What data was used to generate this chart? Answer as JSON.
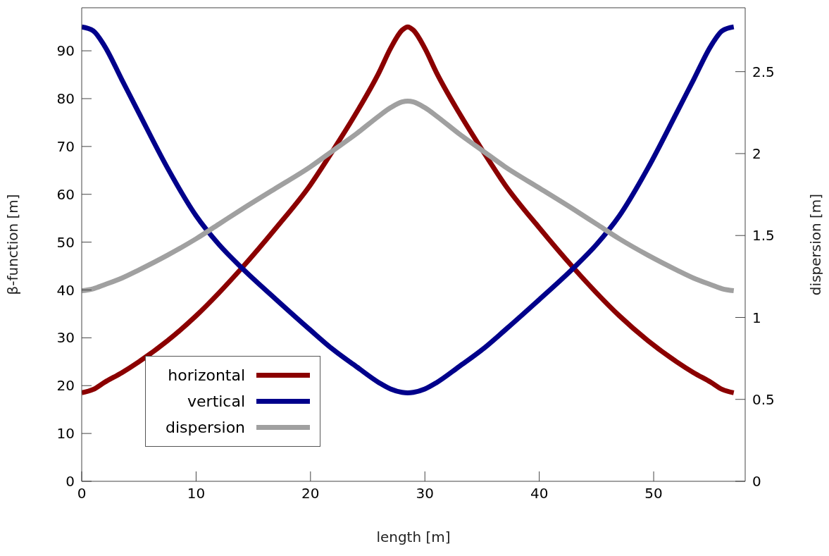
{
  "chart_data": {
    "type": "line",
    "xlabel": "length [m]",
    "ylabel": "β-function [m]",
    "y2label": "dispersion [m]",
    "x": [
      0,
      1,
      2,
      3.5,
      5,
      7.5,
      10,
      12,
      14,
      17,
      20,
      22,
      24,
      26,
      27,
      28,
      28.5,
      29,
      30,
      31,
      33,
      35,
      37,
      40,
      43,
      45,
      47,
      49.5,
      52,
      53.5,
      55,
      56,
      57
    ],
    "series": [
      {
        "name": "horizontal",
        "color": "#8b0000",
        "values": [
          18.5,
          19.2,
          20.7,
          22.7,
          25,
          29.4,
          34.6,
          39.4,
          44.6,
          53,
          62,
          69.3,
          77,
          85.5,
          90.5,
          94.3,
          95,
          94.3,
          90.5,
          85.5,
          77,
          69.3,
          62,
          53,
          44.6,
          39.4,
          34.6,
          29.4,
          25,
          22.7,
          20.7,
          19.2,
          18.5
        ]
      },
      {
        "name": "vertical",
        "color": "#00008b",
        "values": [
          95,
          94.2,
          91,
          84,
          77,
          65.5,
          55.5,
          49.5,
          44.6,
          38,
          31.6,
          27.5,
          24,
          20.6,
          19.3,
          18.6,
          18.5,
          18.6,
          19.3,
          20.6,
          24,
          27.5,
          31.6,
          38,
          44.6,
          49.5,
          55.5,
          65.5,
          77,
          84,
          91,
          94.2,
          95
        ]
      },
      {
        "name": "dispersion",
        "color": "#a0a0a0",
        "axis": "y2",
        "values": [
          1.163,
          1.175,
          1.2,
          1.24,
          1.29,
          1.38,
          1.48,
          1.57,
          1.66,
          1.79,
          1.92,
          2.02,
          2.12,
          2.23,
          2.28,
          2.315,
          2.32,
          2.315,
          2.28,
          2.23,
          2.12,
          2.02,
          1.92,
          1.79,
          1.66,
          1.57,
          1.48,
          1.38,
          1.29,
          1.24,
          1.2,
          1.175,
          1.163
        ]
      }
    ],
    "xlim": [
      0,
      58
    ],
    "xticks": [
      0,
      10,
      20,
      30,
      40,
      50
    ],
    "ylim": [
      0,
      99
    ],
    "yticks": [
      0,
      10,
      20,
      30,
      40,
      50,
      60,
      70,
      80,
      90
    ],
    "y2lim": [
      0,
      2.89
    ],
    "y2ticks": [
      0,
      0.5,
      1,
      1.5,
      2,
      2.5
    ],
    "legend": "bottom left",
    "grid": false,
    "marker": "none",
    "line_style": "solid"
  }
}
